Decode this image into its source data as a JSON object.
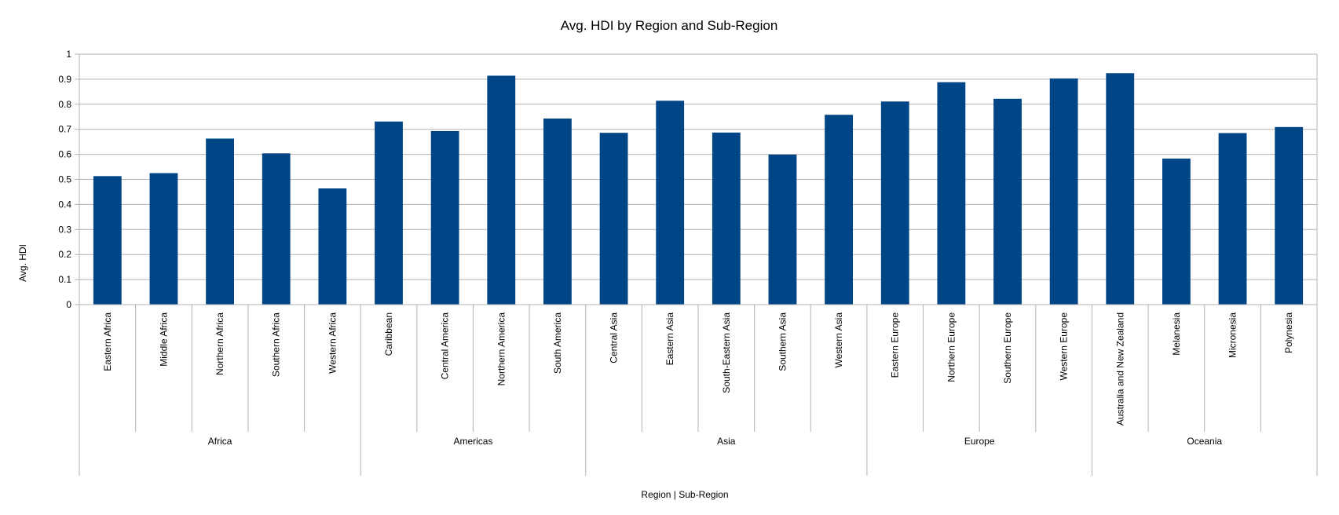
{
  "chart_data": {
    "type": "bar",
    "title": "Avg. HDI by Region and Sub-Region",
    "xlabel": "Region | Sub-Region",
    "ylabel": "Avg. HDI",
    "ylim": [
      0,
      1
    ],
    "yticks": [
      "0",
      "0.1",
      "0.2",
      "0.3",
      "0.4",
      "0.5",
      "0.6",
      "0.7",
      "0.8",
      "0.9",
      "1"
    ],
    "grid": true,
    "bar_color": "#004586",
    "groups": [
      {
        "name": "Africa",
        "categories": [
          "Eastern Africa",
          "Middle Africa",
          "Northern Africa",
          "Southern Africa",
          "Western Africa"
        ],
        "values": [
          0.513,
          0.525,
          0.663,
          0.604,
          0.464
        ]
      },
      {
        "name": "Americas",
        "categories": [
          "Caribbean",
          "Central America",
          "Northern America",
          "South America"
        ],
        "values": [
          0.731,
          0.693,
          0.914,
          0.743
        ]
      },
      {
        "name": "Asia",
        "categories": [
          "Central Asia",
          "Eastern Asia",
          "South-Eastern Asia",
          "Southern Asia",
          "Western Asia"
        ],
        "values": [
          0.686,
          0.814,
          0.687,
          0.599,
          0.758
        ]
      },
      {
        "name": "Europe",
        "categories": [
          "Eastern Europe",
          "Northern Europe",
          "Southern Europe",
          "Western Europe"
        ],
        "values": [
          0.811,
          0.888,
          0.822,
          0.903
        ]
      },
      {
        "name": "Oceania",
        "categories": [
          "Australia and New Zealand",
          "Melanesia",
          "Micronesia",
          "Polynesia"
        ],
        "values": [
          0.924,
          0.583,
          0.685,
          0.709
        ]
      }
    ]
  }
}
